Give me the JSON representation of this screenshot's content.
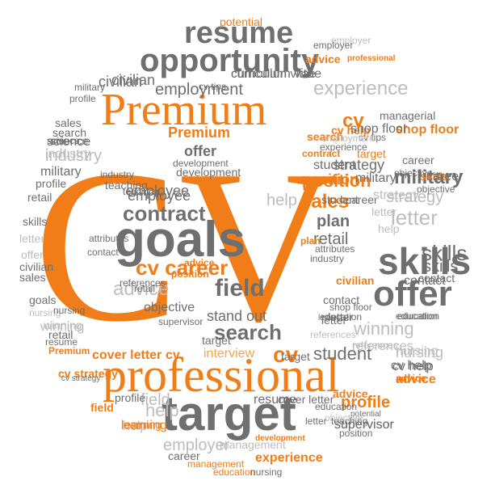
{
  "palette": {
    "orange": "#f07d17",
    "light_orange": "#f6a54a",
    "dark_gray": "#6f6f6f",
    "mid_gray": "#8c8c8c",
    "light_gray": "#bdbdbd",
    "pale_gray": "#dadada"
  },
  "cloud": {
    "shape": "circle",
    "words": [
      {
        "text": "CV",
        "color": "orange",
        "font": "serif"
      },
      {
        "text": "Premium",
        "color": "orange",
        "font": "serif"
      },
      {
        "text": "professional",
        "color": "orange",
        "font": "serif"
      },
      {
        "text": "target",
        "color": "dark_gray",
        "font": "sans"
      },
      {
        "text": "goals",
        "color": "dark_gray",
        "font": "sans"
      },
      {
        "text": "skills",
        "color": "dark_gray",
        "font": "sans"
      },
      {
        "text": "offer",
        "color": "dark_gray",
        "font": "sans"
      },
      {
        "text": "opportunity",
        "color": "dark_gray",
        "font": "sans"
      },
      {
        "text": "resume",
        "color": "dark_gray",
        "font": "sans"
      },
      {
        "text": "cv career",
        "color": "orange",
        "font": "sans"
      },
      {
        "text": "field",
        "color": "dark_gray",
        "font": "sans"
      },
      {
        "text": "contract",
        "color": "dark_gray",
        "font": "sans"
      },
      {
        "text": "search",
        "color": "dark_gray",
        "font": "sans"
      },
      {
        "text": "winning",
        "color": "light_gray",
        "font": "sans"
      },
      {
        "text": "advice",
        "color": "light_gray",
        "font": "sans"
      },
      {
        "text": "experience",
        "color": "light_gray",
        "font": "sans"
      },
      {
        "text": "employment",
        "color": "dark_gray",
        "font": "sans"
      },
      {
        "text": "civilian",
        "color": "dark_gray",
        "font": "sans"
      },
      {
        "text": "curriculum vitae",
        "color": "dark_gray",
        "font": "sans"
      },
      {
        "text": "sales",
        "color": "orange",
        "font": "sans"
      },
      {
        "text": "position",
        "color": "orange",
        "font": "sans"
      },
      {
        "text": "military",
        "color": "dark_gray",
        "font": "sans"
      },
      {
        "text": "letter",
        "color": "light_gray",
        "font": "sans"
      },
      {
        "text": "strategy",
        "color": "light_gray",
        "font": "sans"
      },
      {
        "text": "plan",
        "color": "dark_gray",
        "font": "sans"
      },
      {
        "text": "retail",
        "color": "dark_gray",
        "font": "sans"
      },
      {
        "text": "employee",
        "color": "dark_gray",
        "font": "sans"
      },
      {
        "text": "cv",
        "color": "orange",
        "font": "sans"
      },
      {
        "text": "student",
        "color": "dark_gray",
        "font": "sans"
      },
      {
        "text": "cover letter",
        "color": "orange",
        "font": "sans"
      },
      {
        "text": "cv",
        "color": "orange",
        "font": "sans"
      },
      {
        "text": "interview",
        "color": "light_orange",
        "font": "sans"
      },
      {
        "text": "help",
        "color": "light_gray",
        "font": "sans"
      },
      {
        "text": "profile",
        "color": "orange",
        "font": "sans"
      },
      {
        "text": "supervisor",
        "color": "dark_gray",
        "font": "sans"
      },
      {
        "text": "employer",
        "color": "light_gray",
        "font": "sans"
      },
      {
        "text": "experience",
        "color": "orange",
        "font": "sans"
      },
      {
        "text": "stand out",
        "color": "dark_gray",
        "font": "sans"
      },
      {
        "text": "objective",
        "color": "dark_gray",
        "font": "sans"
      },
      {
        "text": "science",
        "color": "dark_gray",
        "font": "sans"
      },
      {
        "text": "industry",
        "color": "light_gray",
        "font": "sans"
      },
      {
        "text": "contact",
        "color": "dark_gray",
        "font": "sans"
      },
      {
        "text": "nursing",
        "color": "light_gray",
        "font": "sans"
      },
      {
        "text": "education",
        "color": "dark_gray",
        "font": "sans"
      },
      {
        "text": "shop floor",
        "color": "orange",
        "font": "sans"
      },
      {
        "text": "management",
        "color": "light_gray",
        "font": "sans"
      },
      {
        "text": "teaching",
        "color": "dark_gray",
        "font": "sans"
      },
      {
        "text": "cv help",
        "color": "dark_gray",
        "font": "sans"
      },
      {
        "text": "advice",
        "color": "orange",
        "font": "sans"
      },
      {
        "text": "learning",
        "color": "orange",
        "font": "sans"
      },
      {
        "text": "potential",
        "color": "orange",
        "font": "sans"
      },
      {
        "text": "managerial",
        "color": "dark_gray",
        "font": "sans"
      },
      {
        "text": "references",
        "color": "light_gray",
        "font": "sans"
      },
      {
        "text": "attributes",
        "color": "dark_gray",
        "font": "sans"
      },
      {
        "text": "development",
        "color": "dark_gray",
        "font": "sans"
      },
      {
        "text": "career",
        "color": "dark_gray",
        "font": "sans"
      },
      {
        "text": "cv tips",
        "color": "dark_gray",
        "font": "sans"
      },
      {
        "text": "offer",
        "color": "dark_gray",
        "font": "sans"
      },
      {
        "text": "field",
        "color": "light_gray",
        "font": "sans"
      },
      {
        "text": "help",
        "color": "light_gray",
        "font": "sans"
      },
      {
        "text": "target",
        "color": "dark_gray",
        "font": "sans"
      },
      {
        "text": "employer",
        "color": "light_gray",
        "font": "sans"
      },
      {
        "text": "skills",
        "color": "orange",
        "font": "sans"
      },
      {
        "text": "career",
        "color": "dark_gray",
        "font": "sans"
      },
      {
        "text": "objective",
        "color": "dark_gray",
        "font": "sans"
      },
      {
        "text": "sales",
        "color": "dark_gray",
        "font": "sans"
      },
      {
        "text": "search",
        "color": "dark_gray",
        "font": "sans"
      },
      {
        "text": "science",
        "color": "dark_gray",
        "font": "sans"
      },
      {
        "text": "industry",
        "color": "light_gray",
        "font": "sans"
      },
      {
        "text": "military",
        "color": "dark_gray",
        "font": "sans"
      },
      {
        "text": "profile",
        "color": "dark_gray",
        "font": "sans"
      },
      {
        "text": "retail",
        "color": "dark_gray",
        "font": "sans"
      },
      {
        "text": "skills",
        "color": "dark_gray",
        "font": "sans"
      },
      {
        "text": "letter",
        "color": "light_gray",
        "font": "sans"
      },
      {
        "text": "offer",
        "color": "light_gray",
        "font": "sans"
      },
      {
        "text": "civilian",
        "color": "dark_gray",
        "font": "sans"
      },
      {
        "text": "sales",
        "color": "dark_gray",
        "font": "sans"
      },
      {
        "text": "goals",
        "color": "dark_gray",
        "font": "sans"
      },
      {
        "text": "resume",
        "color": "dark_gray",
        "font": "sans"
      },
      {
        "text": "Premium",
        "color": "orange",
        "font": "sans"
      },
      {
        "text": "cv strategy",
        "color": "orange",
        "font": "sans"
      },
      {
        "text": "retail",
        "color": "dark_gray",
        "font": "sans"
      },
      {
        "text": "winning",
        "color": "light_gray",
        "font": "sans"
      },
      {
        "text": "nursing",
        "color": "light_gray",
        "font": "sans"
      },
      {
        "text": "field",
        "color": "orange",
        "font": "sans"
      },
      {
        "text": "profile",
        "color": "dark_gray",
        "font": "sans"
      },
      {
        "text": "help",
        "color": "light_gray",
        "font": "sans"
      },
      {
        "text": "learning",
        "color": "orange",
        "font": "sans"
      },
      {
        "text": "career",
        "color": "dark_gray",
        "font": "sans"
      },
      {
        "text": "management",
        "color": "orange",
        "font": "sans"
      },
      {
        "text": "education",
        "color": "orange",
        "font": "sans"
      },
      {
        "text": "nursing",
        "color": "dark_gray",
        "font": "sans"
      },
      {
        "text": "resume",
        "color": "dark_gray",
        "font": "sans"
      },
      {
        "text": "cover letter",
        "color": "dark_gray",
        "font": "sans"
      },
      {
        "text": "education",
        "color": "dark_gray",
        "font": "sans"
      },
      {
        "text": "letter",
        "color": "dark_gray",
        "font": "sans"
      },
      {
        "text": "teaching",
        "color": "dark_gray",
        "font": "sans"
      },
      {
        "text": "supervisor",
        "color": "dark_gray",
        "font": "sans"
      },
      {
        "text": "position",
        "color": "dark_gray",
        "font": "sans"
      },
      {
        "text": "contact",
        "color": "dark_gray",
        "font": "sans"
      },
      {
        "text": "education",
        "color": "dark_gray",
        "font": "sans"
      },
      {
        "text": "letter",
        "color": "dark_gray",
        "font": "sans"
      },
      {
        "text": "advice",
        "color": "orange",
        "font": "sans"
      },
      {
        "text": "cv help",
        "color": "dark_gray",
        "font": "sans"
      },
      {
        "text": "references",
        "color": "light_gray",
        "font": "sans"
      },
      {
        "text": "nursing",
        "color": "light_gray",
        "font": "sans"
      },
      {
        "text": "student",
        "color": "dark_gray",
        "font": "sans"
      },
      {
        "text": "strategy",
        "color": "dark_gray",
        "font": "sans"
      },
      {
        "text": "student",
        "color": "dark_gray",
        "font": "sans"
      },
      {
        "text": "career",
        "color": "dark_gray",
        "font": "sans"
      },
      {
        "text": "position",
        "color": "orange",
        "font": "sans"
      },
      {
        "text": "military",
        "color": "dark_gray",
        "font": "sans"
      },
      {
        "text": "strategy",
        "color": "light_gray",
        "font": "sans"
      },
      {
        "text": "letter",
        "color": "light_gray",
        "font": "sans"
      },
      {
        "text": "help",
        "color": "light_gray",
        "font": "sans"
      },
      {
        "text": "attributes",
        "color": "dark_gray",
        "font": "sans"
      },
      {
        "text": "industry",
        "color": "dark_gray",
        "font": "sans"
      },
      {
        "text": "plan",
        "color": "orange",
        "font": "sans"
      },
      {
        "text": "civilian",
        "color": "orange",
        "font": "sans"
      },
      {
        "text": "contact",
        "color": "dark_gray",
        "font": "sans"
      },
      {
        "text": "shop floor",
        "color": "dark_gray",
        "font": "sans"
      },
      {
        "text": "education",
        "color": "dark_gray",
        "font": "sans"
      },
      {
        "text": "letter",
        "color": "dark_gray",
        "font": "sans"
      },
      {
        "text": "supervisor",
        "color": "dark_gray",
        "font": "sans"
      },
      {
        "text": "nursing",
        "color": "dark_gray",
        "font": "sans"
      },
      {
        "text": "winning",
        "color": "light_gray",
        "font": "sans"
      },
      {
        "text": "development",
        "color": "dark_gray",
        "font": "sans"
      },
      {
        "text": "teaching",
        "color": "dark_gray",
        "font": "sans"
      },
      {
        "text": "references",
        "color": "dark_gray",
        "font": "sans"
      },
      {
        "text": "retail",
        "color": "dark_gray",
        "font": "sans"
      },
      {
        "text": "advice",
        "color": "orange",
        "font": "sans"
      },
      {
        "text": "position",
        "color": "orange",
        "font": "sans"
      },
      {
        "text": "cv tips",
        "color": "dark_gray",
        "font": "sans"
      },
      {
        "text": "civilian",
        "color": "dark_gray",
        "font": "sans"
      },
      {
        "text": "curriculum vitae",
        "color": "dark_gray",
        "font": "sans"
      },
      {
        "text": "employee",
        "color": "dark_gray",
        "font": "sans"
      },
      {
        "text": "skills",
        "color": "dark_gray",
        "font": "sans"
      },
      {
        "text": "search",
        "color": "orange",
        "font": "sans"
      },
      {
        "text": "skills",
        "color": "dark_gray",
        "font": "sans"
      },
      {
        "text": "advice",
        "color": "orange",
        "font": "sans"
      },
      {
        "text": "professional",
        "color": "orange",
        "font": "sans"
      },
      {
        "text": "employer",
        "color": "dark_gray",
        "font": "sans"
      },
      {
        "text": "cv help",
        "color": "orange",
        "font": "sans"
      },
      {
        "text": "shop floor",
        "color": "dark_gray",
        "font": "sans"
      },
      {
        "text": "target",
        "color": "orange",
        "font": "sans"
      },
      {
        "text": "contract",
        "color": "orange",
        "font": "sans"
      },
      {
        "text": "objective",
        "color": "dark_gray",
        "font": "sans"
      },
      {
        "text": "military",
        "color": "dark_gray",
        "font": "sans"
      },
      {
        "text": "profile",
        "color": "dark_gray",
        "font": "sans"
      },
      {
        "text": "science",
        "color": "dark_gray",
        "font": "sans"
      },
      {
        "text": "employment",
        "color": "light_gray",
        "font": "sans"
      },
      {
        "text": "experience",
        "color": "dark_gray",
        "font": "sans"
      },
      {
        "text": "contact",
        "color": "dark_gray",
        "font": "sans"
      },
      {
        "text": "development",
        "color": "orange",
        "font": "sans"
      },
      {
        "text": "potential",
        "color": "dark_gray",
        "font": "sans"
      },
      {
        "text": "cv strategy",
        "color": "dark_gray",
        "font": "sans"
      },
      {
        "text": "objective",
        "color": "light_gray",
        "font": "sans"
      },
      {
        "text": "advice",
        "color": "orange",
        "font": "sans"
      },
      {
        "text": "cv",
        "color": "orange",
        "font": "sans"
      },
      {
        "text": "Premium",
        "color": "orange",
        "font": "sans"
      },
      {
        "text": "target",
        "color": "dark_gray",
        "font": "sans"
      },
      {
        "text": "references",
        "color": "light_gray",
        "font": "sans"
      },
      {
        "text": "letter",
        "color": "dark_gray",
        "font": "sans"
      },
      {
        "text": "industry",
        "color": "dark_gray",
        "font": "sans"
      }
    ]
  }
}
